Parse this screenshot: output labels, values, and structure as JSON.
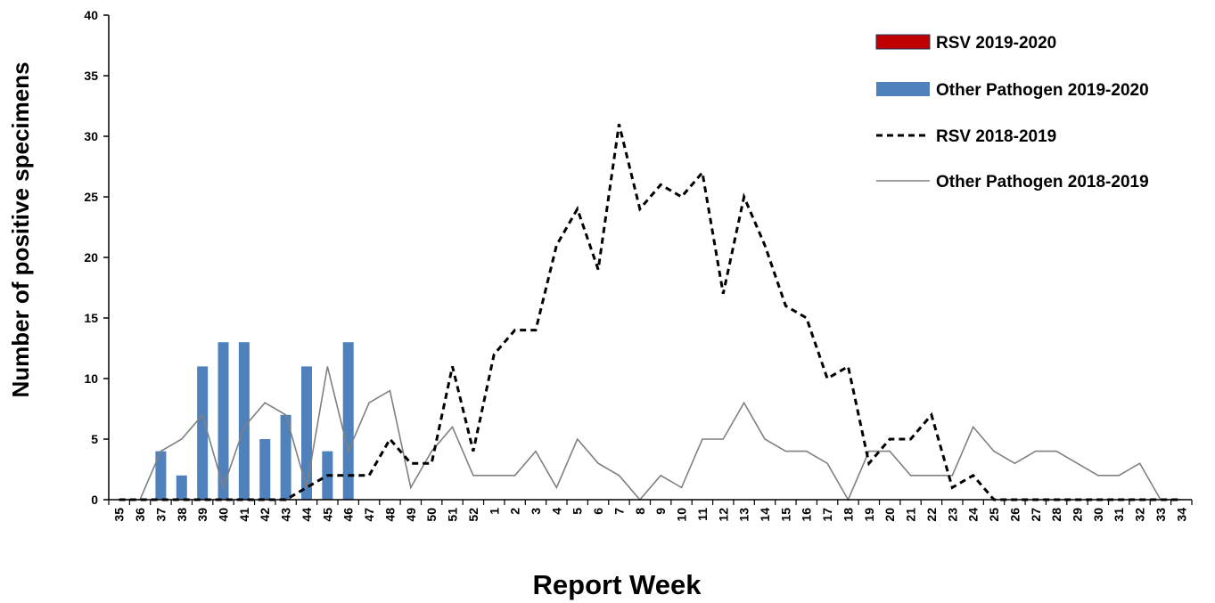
{
  "chart_data": {
    "type": "bar",
    "xlabel": "Report Week",
    "ylabel": "Number of positive specimens",
    "ylim": [
      0,
      40
    ],
    "yticks": [
      0,
      5,
      10,
      15,
      20,
      25,
      30,
      35,
      40
    ],
    "grid": false,
    "legend_position": "top-right",
    "categories": [
      "35",
      "36",
      "37",
      "38",
      "39",
      "40",
      "41",
      "42",
      "43",
      "44",
      "45",
      "46",
      "47",
      "48",
      "49",
      "50",
      "51",
      "52",
      "1",
      "2",
      "3",
      "4",
      "5",
      "6",
      "7",
      "8",
      "9",
      "10",
      "11",
      "12",
      "13",
      "14",
      "15",
      "16",
      "17",
      "18",
      "19",
      "20",
      "21",
      "22",
      "23",
      "24",
      "25",
      "26",
      "27",
      "28",
      "29",
      "30",
      "31",
      "32",
      "33",
      "34"
    ],
    "series": [
      {
        "name": "RSV 2019-2020",
        "kind": "bar",
        "color": "#c00000",
        "values": [
          0,
          0,
          0,
          0,
          0,
          0,
          0,
          0,
          0,
          0,
          0,
          0,
          null,
          null,
          null,
          null,
          null,
          null,
          null,
          null,
          null,
          null,
          null,
          null,
          null,
          null,
          null,
          null,
          null,
          null,
          null,
          null,
          null,
          null,
          null,
          null,
          null,
          null,
          null,
          null,
          null,
          null,
          null,
          null,
          null,
          null,
          null,
          null,
          null,
          null,
          null,
          null
        ]
      },
      {
        "name": "Other Pathogen 2019-2020",
        "kind": "bar",
        "color": "#4f81bd",
        "values": [
          0,
          0,
          4,
          2,
          11,
          13,
          13,
          5,
          7,
          11,
          4,
          13,
          null,
          null,
          null,
          null,
          null,
          null,
          null,
          null,
          null,
          null,
          null,
          null,
          null,
          null,
          null,
          null,
          null,
          null,
          null,
          null,
          null,
          null,
          null,
          null,
          null,
          null,
          null,
          null,
          null,
          null,
          null,
          null,
          null,
          null,
          null,
          null,
          null,
          null,
          null,
          null
        ]
      },
      {
        "name": "RSV 2018-2019",
        "kind": "line-dashed",
        "color": "#000000",
        "values": [
          0,
          0,
          0,
          0,
          0,
          0,
          0,
          0,
          0,
          1,
          2,
          2,
          2,
          5,
          3,
          3,
          11,
          4,
          12,
          14,
          14,
          21,
          24,
          19,
          31,
          24,
          26,
          25,
          27,
          17,
          25,
          21,
          16,
          15,
          10,
          11,
          3,
          5,
          5,
          7,
          1,
          2,
          0,
          0,
          0,
          0,
          0,
          0,
          0,
          0,
          0,
          0
        ]
      },
      {
        "name": "Other Pathogen 2018-2019",
        "kind": "line",
        "color": "#808080",
        "values": [
          0,
          0,
          4,
          5,
          7,
          1,
          6,
          8,
          7,
          1,
          11,
          4,
          8,
          9,
          1,
          4,
          6,
          2,
          2,
          2,
          4,
          1,
          5,
          3,
          2,
          0,
          2,
          1,
          5,
          5,
          8,
          5,
          4,
          4,
          3,
          0,
          4,
          4,
          2,
          2,
          2,
          6,
          4,
          3,
          4,
          4,
          3,
          2,
          2,
          3,
          0,
          0
        ]
      }
    ]
  }
}
